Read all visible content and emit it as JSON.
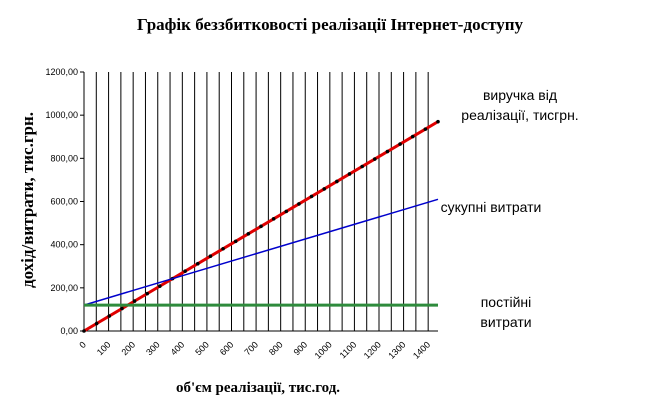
{
  "chart_data": {
    "type": "line",
    "title": "Графік беззбитковості реалізації Інтернет-доступу",
    "xlabel": "об'єм реалізації, тис.год.",
    "ylabel": "дохід/витрати, тис.грн.",
    "xlim": [
      0,
      1440
    ],
    "ylim": [
      0,
      1200
    ],
    "x_ticks": [
      "0",
      "100",
      "200",
      "300",
      "400",
      "500",
      "600",
      "700",
      "800",
      "900",
      "1000",
      "1100",
      "1200",
      "1300",
      "1400"
    ],
    "y_ticks": [
      "0,00",
      "200,00",
      "400,00",
      "600,00",
      "800,00",
      "1000,00",
      "1200,00"
    ],
    "grid": {
      "vertical": true,
      "horizontal": false
    },
    "series": [
      {
        "key": "revenue",
        "color": "#e00000",
        "marker": "dot",
        "x": [
          0,
          1440
        ],
        "y": [
          0,
          970
        ]
      },
      {
        "key": "total",
        "color": "#0000cc",
        "x": [
          0,
          1440
        ],
        "y": [
          120,
          610
        ]
      },
      {
        "key": "fixed",
        "color": "#2e8b3c",
        "x": [
          0,
          1440
        ],
        "y": [
          120,
          120
        ]
      }
    ],
    "annotations": [
      {
        "series": "revenue",
        "lines": [
          "виручка від",
          "реалізації, тисгрн."
        ]
      },
      {
        "series": "total",
        "lines": [
          "сукупні витрати"
        ]
      },
      {
        "series": "fixed",
        "lines": [
          "постійні",
          "витрати"
        ]
      }
    ]
  }
}
